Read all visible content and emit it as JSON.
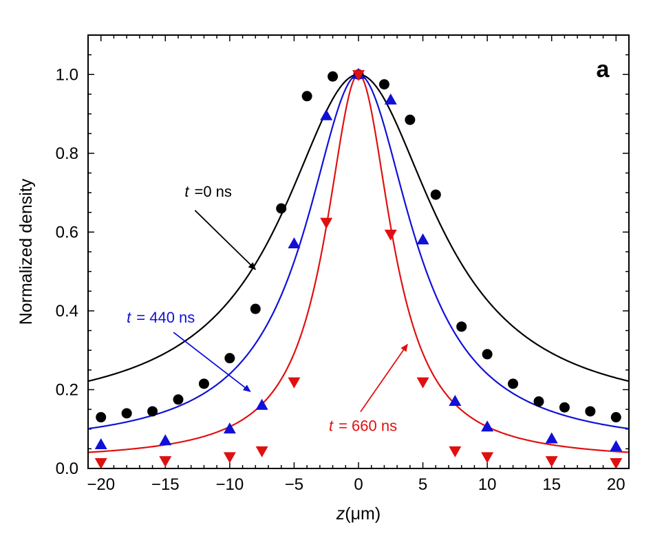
{
  "chart_data": {
    "type": "scatter",
    "panel_label": "a",
    "xlabel_var": "z",
    "xlabel_unit": "(μm)",
    "ylabel": "Normalized density",
    "xlim": [
      -21,
      21
    ],
    "ylim": [
      0,
      1.1
    ],
    "xticks": [
      -20,
      -15,
      -10,
      -5,
      0,
      5,
      10,
      15,
      20
    ],
    "xtick_labels": [
      "−20",
      "−15",
      "−10",
      "−5",
      "0",
      "5",
      "10",
      "15",
      "20"
    ],
    "yticks": [
      0.0,
      0.2,
      0.4,
      0.6,
      0.8,
      1.0
    ],
    "ytick_labels": [
      "0.0",
      "0.2",
      "0.4",
      "0.6",
      "0.8",
      "1.0"
    ],
    "series": [
      {
        "name": "t = 0 ns",
        "color": "#000000",
        "marker": "circle",
        "fit": {
          "offset": 0.13,
          "amplitude": 0.87,
          "width": 7.2
        },
        "x": [
          -20,
          -18,
          -16,
          -14,
          -12,
          -10,
          -8,
          -6,
          -4,
          -2,
          0,
          2,
          4,
          6,
          8,
          10,
          12,
          14,
          16,
          18,
          20
        ],
        "y": [
          0.13,
          0.14,
          0.145,
          0.175,
          0.215,
          0.28,
          0.405,
          0.66,
          0.945,
          0.995,
          1.0,
          0.975,
          0.885,
          0.695,
          0.36,
          0.29,
          0.215,
          0.17,
          0.155,
          0.145,
          0.13
        ]
      },
      {
        "name": "t = 440 ns",
        "color": "#1010d8",
        "marker": "triangle-up",
        "fit": {
          "offset": 0.05,
          "amplitude": 0.95,
          "width": 5.0
        },
        "x": [
          -20,
          -15,
          -10,
          -7.5,
          -5,
          -2.5,
          0,
          2.5,
          5,
          7.5,
          10,
          15,
          20
        ],
        "y": [
          0.06,
          0.07,
          0.1,
          0.16,
          0.57,
          0.895,
          1.0,
          0.935,
          0.58,
          0.17,
          0.105,
          0.075,
          0.055
        ]
      },
      {
        "name": "t = 660 ns",
        "color": "#e01010",
        "marker": "triangle-down",
        "fit": {
          "offset": 0.02,
          "amplitude": 0.98,
          "width": 3.1
        },
        "x": [
          -20,
          -15,
          -10,
          -7.5,
          -5,
          -2.5,
          0,
          2.5,
          5,
          7.5,
          10,
          15,
          20
        ],
        "y": [
          0.015,
          0.02,
          0.03,
          0.045,
          0.22,
          0.625,
          1.0,
          0.595,
          0.22,
          0.045,
          0.03,
          0.02,
          0.015
        ]
      }
    ],
    "annotations": [
      {
        "t_label": "t",
        "text": "=0 ns",
        "color": "#000000",
        "arrow_to": [
          -8.0,
          0.505
        ],
        "label_at": [
          -13.5,
          0.69
        ]
      },
      {
        "t_label": "t",
        "text": "= 440 ns",
        "color": "#1010d8",
        "arrow_to": [
          -8.4,
          0.195
        ],
        "label_at": [
          -18.0,
          0.37
        ]
      },
      {
        "t_label": "t",
        "text": "= 660 ns",
        "color": "#e01010",
        "arrow_to": [
          3.8,
          0.315
        ],
        "label_at": [
          -2.3,
          0.095
        ]
      }
    ]
  }
}
